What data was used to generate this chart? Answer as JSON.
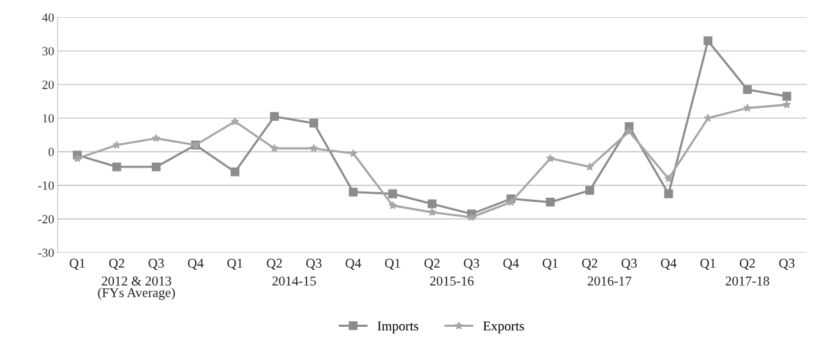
{
  "chart_data": {
    "type": "line",
    "categories": [
      "Q1",
      "Q2",
      "Q3",
      "Q4",
      "Q1",
      "Q2",
      "Q3",
      "Q4",
      "Q1",
      "Q2",
      "Q3",
      "Q4",
      "Q1",
      "Q2",
      "Q3",
      "Q4",
      "Q1",
      "Q2",
      "Q3"
    ],
    "annotations": [
      "2012 & 2013\n(FYs Average)",
      "2014-15",
      "2015-16",
      "2016-17",
      "2017-18"
    ],
    "series": [
      {
        "name": "Imports",
        "color": "#8c8c8c",
        "marker": "square",
        "values": [
          -1,
          -4.5,
          -4.5,
          2,
          -6,
          10.5,
          8.5,
          -12,
          -12.5,
          -15.5,
          -18.5,
          -14,
          -15,
          -11.5,
          7.5,
          -12.5,
          33,
          18.5,
          16.5
        ]
      },
      {
        "name": "Exports",
        "color": "#a6a6a6",
        "marker": "star",
        "values": [
          -2,
          2,
          4,
          2,
          9,
          1,
          1,
          -0.5,
          -16,
          -18,
          -19.5,
          -15,
          -2,
          -4.5,
          6,
          -8,
          10,
          13,
          14
        ]
      }
    ],
    "ylim": [
      -30,
      40
    ],
    "yticks": [
      -30,
      -20,
      -10,
      0,
      10,
      20,
      30,
      40
    ],
    "grid": "y",
    "legend": "bottom"
  }
}
